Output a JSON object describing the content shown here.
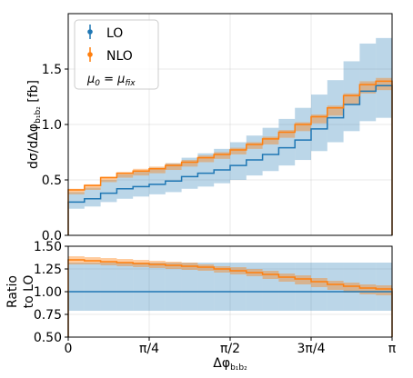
{
  "chart_data": [
    {
      "type": "line",
      "panel": "main",
      "drawstyle": "steps",
      "ylabel_parts": [
        "dσ/dΔφ",
        "b₁b₂",
        "  [fb]"
      ],
      "ylim": [
        0,
        2.0
      ],
      "xlim": [
        0,
        3.14159
      ],
      "yticks": [
        0.0,
        0.5,
        1.0,
        1.5
      ],
      "ytick_labels": [
        "0.0",
        "0.5",
        "1.0",
        "1.5"
      ],
      "grid": true,
      "legend_position": "top-left",
      "legend": [
        {
          "label": "LO",
          "color": "#1f77b4"
        },
        {
          "label": "NLO",
          "color": "#ff7f0e"
        }
      ],
      "legend_note_parts": [
        "μ",
        "0",
        " = μ",
        "fix"
      ],
      "bin_edges": [
        0,
        0.1571,
        0.3142,
        0.4712,
        0.6283,
        0.7854,
        0.9425,
        1.0996,
        1.2566,
        1.4137,
        1.5708,
        1.7279,
        1.885,
        2.042,
        2.1991,
        2.3562,
        2.5133,
        2.6704,
        2.8274,
        2.9845,
        3.1416
      ],
      "series": [
        {
          "name": "LO",
          "color": "#1f77b4",
          "band_alpha": 0.3,
          "values": [
            0.3,
            0.33,
            0.38,
            0.42,
            0.44,
            0.46,
            0.49,
            0.53,
            0.56,
            0.59,
            0.63,
            0.68,
            0.73,
            0.79,
            0.86,
            0.96,
            1.06,
            1.18,
            1.3,
            1.35
          ],
          "band_low": [
            0.24,
            0.26,
            0.3,
            0.33,
            0.35,
            0.37,
            0.39,
            0.42,
            0.44,
            0.47,
            0.5,
            0.54,
            0.58,
            0.63,
            0.68,
            0.76,
            0.84,
            0.94,
            1.03,
            1.06
          ],
          "band_high": [
            0.39,
            0.43,
            0.5,
            0.55,
            0.58,
            0.61,
            0.65,
            0.7,
            0.74,
            0.78,
            0.84,
            0.9,
            0.97,
            1.05,
            1.15,
            1.27,
            1.4,
            1.57,
            1.73,
            1.78
          ]
        },
        {
          "name": "NLO",
          "color": "#ff7f0e",
          "band_alpha": 0.4,
          "values": [
            0.41,
            0.45,
            0.52,
            0.56,
            0.58,
            0.6,
            0.63,
            0.66,
            0.7,
            0.73,
            0.77,
            0.82,
            0.87,
            0.93,
            1.0,
            1.07,
            1.15,
            1.26,
            1.36,
            1.39
          ],
          "band_low": [
            0.37,
            0.41,
            0.48,
            0.52,
            0.54,
            0.56,
            0.59,
            0.62,
            0.66,
            0.69,
            0.73,
            0.78,
            0.82,
            0.88,
            0.94,
            1.01,
            1.08,
            1.18,
            1.28,
            1.31
          ],
          "band_high": [
            0.42,
            0.46,
            0.53,
            0.57,
            0.6,
            0.62,
            0.65,
            0.68,
            0.72,
            0.75,
            0.79,
            0.84,
            0.89,
            0.95,
            1.02,
            1.09,
            1.17,
            1.28,
            1.39,
            1.42
          ]
        }
      ]
    },
    {
      "type": "line",
      "panel": "ratio",
      "drawstyle": "steps",
      "ylabel_lines": [
        "Ratio",
        "to LO"
      ],
      "xlabel_parts": [
        "Δφ",
        "b₁b₂"
      ],
      "ylim": [
        0.5,
        1.5
      ],
      "yticks": [
        0.5,
        0.75,
        1.0,
        1.25,
        1.5
      ],
      "ytick_labels": [
        "0.50",
        "0.75",
        "1.00",
        "1.25",
        "1.50"
      ],
      "xticks": [
        0,
        0.7854,
        1.5708,
        2.3562,
        3.1416
      ],
      "xtick_labels": [
        "0",
        "π/4",
        "π/2",
        "3π/4",
        "π"
      ],
      "grid": true,
      "series": [
        {
          "name": "LO",
          "color": "#1f77b4",
          "band_alpha": 0.3,
          "values": [
            1.0,
            1.0,
            1.0,
            1.0,
            1.0,
            1.0,
            1.0,
            1.0,
            1.0,
            1.0,
            1.0,
            1.0,
            1.0,
            1.0,
            1.0,
            1.0,
            1.0,
            1.0,
            1.0,
            1.0
          ],
          "band_low": [
            0.79,
            0.79,
            0.79,
            0.79,
            0.79,
            0.79,
            0.79,
            0.79,
            0.79,
            0.79,
            0.79,
            0.79,
            0.79,
            0.79,
            0.79,
            0.79,
            0.79,
            0.79,
            0.79,
            0.79
          ],
          "band_high": [
            1.32,
            1.32,
            1.32,
            1.32,
            1.32,
            1.32,
            1.32,
            1.32,
            1.32,
            1.32,
            1.32,
            1.32,
            1.32,
            1.32,
            1.32,
            1.32,
            1.32,
            1.32,
            1.32,
            1.32
          ]
        },
        {
          "name": "NLO",
          "color": "#ff7f0e",
          "band_alpha": 0.4,
          "values": [
            1.35,
            1.34,
            1.33,
            1.32,
            1.31,
            1.3,
            1.29,
            1.28,
            1.27,
            1.25,
            1.23,
            1.21,
            1.19,
            1.16,
            1.14,
            1.11,
            1.08,
            1.06,
            1.04,
            1.03
          ],
          "band_low": [
            1.3,
            1.3,
            1.29,
            1.28,
            1.27,
            1.26,
            1.25,
            1.24,
            1.23,
            1.21,
            1.19,
            1.17,
            1.14,
            1.11,
            1.08,
            1.05,
            1.02,
            0.99,
            0.97,
            0.96
          ],
          "band_high": [
            1.39,
            1.38,
            1.37,
            1.36,
            1.35,
            1.34,
            1.33,
            1.32,
            1.3,
            1.28,
            1.27,
            1.25,
            1.23,
            1.2,
            1.18,
            1.15,
            1.12,
            1.1,
            1.08,
            1.07
          ]
        }
      ]
    }
  ]
}
